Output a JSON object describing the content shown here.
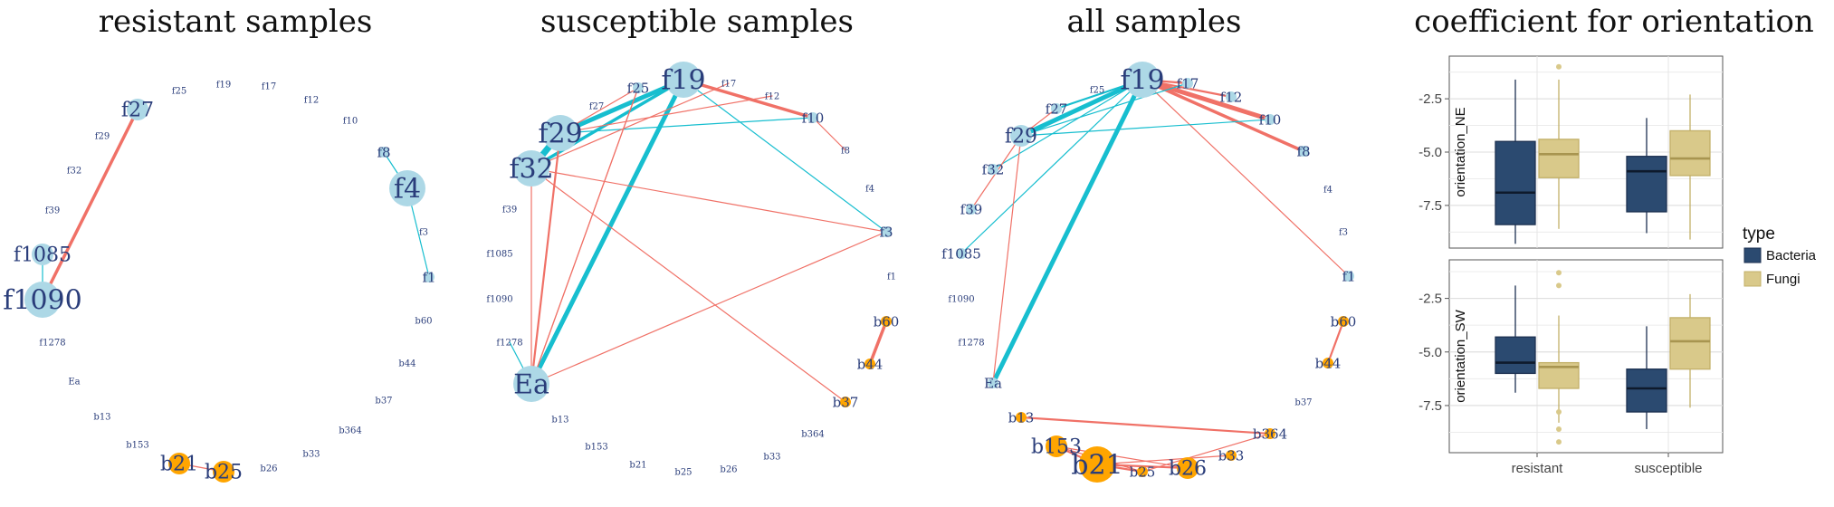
{
  "titles": {
    "resistant": "resistant samples",
    "susceptible": "susceptible samples",
    "all": "all samples",
    "boxplot": "coefficient for orientation"
  },
  "colors": {
    "fungi_node": "#add8e6",
    "bacteria_node": "#ffa500",
    "label": "#2a3d7a",
    "positive_edge": "#17becf",
    "negative_edge": "#f07167",
    "bacteria_box": "#2b4a70",
    "fungi_box": "#d9c98a"
  },
  "networks": [
    {
      "key": "resistant",
      "nodes": [
        {
          "id": "f25",
          "label": "f25",
          "kind": "fungi",
          "size": 0
        },
        {
          "id": "f19",
          "label": "f19",
          "kind": "fungi",
          "size": 0
        },
        {
          "id": "f17",
          "label": "f17",
          "kind": "fungi",
          "size": 0
        },
        {
          "id": "f12",
          "label": "f12",
          "kind": "fungi",
          "size": 0
        },
        {
          "id": "f10",
          "label": "f10",
          "kind": "fungi",
          "size": 0
        },
        {
          "id": "f27",
          "label": "f27",
          "kind": "fungi",
          "size": 2
        },
        {
          "id": "f29",
          "label": "f29",
          "kind": "fungi",
          "size": 0
        },
        {
          "id": "f32",
          "label": "f32",
          "kind": "fungi",
          "size": 0
        },
        {
          "id": "f39",
          "label": "f39",
          "kind": "fungi",
          "size": 0
        },
        {
          "id": "f1085",
          "label": "f1085",
          "kind": "fungi",
          "size": 2
        },
        {
          "id": "f1090",
          "label": "f1090",
          "kind": "fungi",
          "size": 3
        },
        {
          "id": "f1278",
          "label": "f1278",
          "kind": "fungi",
          "size": 0
        },
        {
          "id": "Ea",
          "label": "Ea",
          "kind": "fungi",
          "size": 0
        },
        {
          "id": "f8",
          "label": "f8",
          "kind": "fungi",
          "size": 1
        },
        {
          "id": "f4",
          "label": "f4",
          "kind": "fungi",
          "size": 3
        },
        {
          "id": "f3",
          "label": "f3",
          "kind": "fungi",
          "size": 0
        },
        {
          "id": "f1",
          "label": "f1",
          "kind": "fungi",
          "size": 1
        },
        {
          "id": "b60",
          "label": "b60",
          "kind": "bacteria",
          "size": 0
        },
        {
          "id": "b44",
          "label": "b44",
          "kind": "bacteria",
          "size": 0
        },
        {
          "id": "b37",
          "label": "b37",
          "kind": "bacteria",
          "size": 0
        },
        {
          "id": "b364",
          "label": "b364",
          "kind": "bacteria",
          "size": 0
        },
        {
          "id": "b33",
          "label": "b33",
          "kind": "bacteria",
          "size": 0
        },
        {
          "id": "b26",
          "label": "b26",
          "kind": "bacteria",
          "size": 0
        },
        {
          "id": "b25",
          "label": "b25",
          "kind": "bacteria",
          "size": 2
        },
        {
          "id": "b21",
          "label": "b21",
          "kind": "bacteria",
          "size": 2
        },
        {
          "id": "b153",
          "label": "b153",
          "kind": "bacteria",
          "size": 0
        },
        {
          "id": "b13",
          "label": "b13",
          "kind": "bacteria",
          "size": 0
        }
      ],
      "edges": [
        {
          "from": "f27",
          "to": "f1090",
          "sign": "negative",
          "weight": 3
        },
        {
          "from": "f1085",
          "to": "f1090",
          "sign": "positive",
          "weight": 1
        },
        {
          "from": "f8",
          "to": "f4",
          "sign": "positive",
          "weight": 1
        },
        {
          "from": "f4",
          "to": "f1",
          "sign": "positive",
          "weight": 1
        },
        {
          "from": "b21",
          "to": "b25",
          "sign": "negative",
          "weight": 1
        }
      ]
    },
    {
      "key": "susceptible",
      "nodes": [
        {
          "id": "f19",
          "label": "f19",
          "kind": "fungi",
          "size": 3
        },
        {
          "id": "f25",
          "label": "f25",
          "kind": "fungi",
          "size": 1
        },
        {
          "id": "f17",
          "label": "f17",
          "kind": "fungi",
          "size": 0
        },
        {
          "id": "f12",
          "label": "f12",
          "kind": "fungi",
          "size": 0
        },
        {
          "id": "f10",
          "label": "f10",
          "kind": "fungi",
          "size": 1
        },
        {
          "id": "f27",
          "label": "f27",
          "kind": "fungi",
          "size": 0
        },
        {
          "id": "f29",
          "label": "f29",
          "kind": "fungi",
          "size": 3
        },
        {
          "id": "f8",
          "label": "f8",
          "kind": "fungi",
          "size": 0
        },
        {
          "id": "f32",
          "label": "f32",
          "kind": "fungi",
          "size": 3
        },
        {
          "id": "f4",
          "label": "f4",
          "kind": "fungi",
          "size": 0
        },
        {
          "id": "f39",
          "label": "f39",
          "kind": "fungi",
          "size": 0
        },
        {
          "id": "f3",
          "label": "f3",
          "kind": "fungi",
          "size": 1
        },
        {
          "id": "f1085",
          "label": "f1085",
          "kind": "fungi",
          "size": 0
        },
        {
          "id": "f1",
          "label": "f1",
          "kind": "fungi",
          "size": 0
        },
        {
          "id": "f1090",
          "label": "f1090",
          "kind": "fungi",
          "size": 0
        },
        {
          "id": "b60",
          "label": "b60",
          "kind": "bacteria",
          "size": 1
        },
        {
          "id": "f1278",
          "label": "f1278",
          "kind": "fungi",
          "size": 0
        },
        {
          "id": "b44",
          "label": "b44",
          "kind": "bacteria",
          "size": 1
        },
        {
          "id": "Ea",
          "label": "Ea",
          "kind": "fungi",
          "size": 3
        },
        {
          "id": "b37",
          "label": "b37",
          "kind": "bacteria",
          "size": 1
        },
        {
          "id": "b13",
          "label": "b13",
          "kind": "bacteria",
          "size": 0
        },
        {
          "id": "b364",
          "label": "b364",
          "kind": "bacteria",
          "size": 0
        },
        {
          "id": "b153",
          "label": "b153",
          "kind": "bacteria",
          "size": 0
        },
        {
          "id": "b33",
          "label": "b33",
          "kind": "bacteria",
          "size": 0
        },
        {
          "id": "b21",
          "label": "b21",
          "kind": "bacteria",
          "size": 0
        },
        {
          "id": "b25",
          "label": "b25",
          "kind": "bacteria",
          "size": 0
        },
        {
          "id": "b26",
          "label": "b26",
          "kind": "bacteria",
          "size": 0
        }
      ],
      "edges": [
        {
          "from": "f19",
          "to": "Ea",
          "sign": "positive",
          "weight": 4
        },
        {
          "from": "f19",
          "to": "f29",
          "sign": "positive",
          "weight": 4
        },
        {
          "from": "f19",
          "to": "f32",
          "sign": "positive",
          "weight": 3
        },
        {
          "from": "f19",
          "to": "f10",
          "sign": "negative",
          "weight": 3
        },
        {
          "from": "f19",
          "to": "f3",
          "sign": "positive",
          "weight": 1
        },
        {
          "from": "f29",
          "to": "f32",
          "sign": "positive",
          "weight": 5
        },
        {
          "from": "f29",
          "to": "f10",
          "sign": "positive",
          "weight": 1
        },
        {
          "from": "f29",
          "to": "Ea",
          "sign": "negative",
          "weight": 2
        },
        {
          "from": "f32",
          "to": "f3",
          "sign": "negative",
          "weight": 1
        },
        {
          "from": "f32",
          "to": "b37",
          "sign": "negative",
          "weight": 1
        },
        {
          "from": "f32",
          "to": "Ea",
          "sign": "negative",
          "weight": 1
        },
        {
          "from": "f25",
          "to": "Ea",
          "sign": "negative",
          "weight": 1
        },
        {
          "from": "f25",
          "to": "f29",
          "sign": "negative",
          "weight": 1
        },
        {
          "from": "f17",
          "to": "f32",
          "sign": "negative",
          "weight": 1
        },
        {
          "from": "f12",
          "to": "f29",
          "sign": "negative",
          "weight": 1
        },
        {
          "from": "f10",
          "to": "f8",
          "sign": "negative",
          "weight": 1
        },
        {
          "from": "f1278",
          "to": "Ea",
          "sign": "positive",
          "weight": 1
        },
        {
          "from": "Ea",
          "to": "f3",
          "sign": "negative",
          "weight": 1
        },
        {
          "from": "f25",
          "to": "Ea",
          "sign": "negative",
          "weight": 1
        },
        {
          "from": "b60",
          "to": "b44",
          "sign": "negative",
          "weight": 3
        }
      ]
    },
    {
      "key": "all",
      "nodes": [
        {
          "id": "f19",
          "label": "f19",
          "kind": "fungi",
          "size": 3
        },
        {
          "id": "f17",
          "label": "f17",
          "kind": "fungi",
          "size": 1
        },
        {
          "id": "f25",
          "label": "f25",
          "kind": "fungi",
          "size": 0
        },
        {
          "id": "f12",
          "label": "f12",
          "kind": "fungi",
          "size": 1
        },
        {
          "id": "f27",
          "label": "f27",
          "kind": "fungi",
          "size": 1
        },
        {
          "id": "f10",
          "label": "f10",
          "kind": "fungi",
          "size": 1
        },
        {
          "id": "f29",
          "label": "f29",
          "kind": "fungi",
          "size": 2
        },
        {
          "id": "f8",
          "label": "f8",
          "kind": "fungi",
          "size": 1
        },
        {
          "id": "f32",
          "label": "f32",
          "kind": "fungi",
          "size": 1
        },
        {
          "id": "f4",
          "label": "f4",
          "kind": "fungi",
          "size": 0
        },
        {
          "id": "f39",
          "label": "f39",
          "kind": "fungi",
          "size": 1
        },
        {
          "id": "f3",
          "label": "f3",
          "kind": "fungi",
          "size": 0
        },
        {
          "id": "f1085",
          "label": "f1085",
          "kind": "fungi",
          "size": 1
        },
        {
          "id": "f1",
          "label": "f1",
          "kind": "fungi",
          "size": 1
        },
        {
          "id": "f1090",
          "label": "f1090",
          "kind": "fungi",
          "size": 0
        },
        {
          "id": "b60",
          "label": "b60",
          "kind": "bacteria",
          "size": 1
        },
        {
          "id": "f1278",
          "label": "f1278",
          "kind": "fungi",
          "size": 0
        },
        {
          "id": "b44",
          "label": "b44",
          "kind": "bacteria",
          "size": 1
        },
        {
          "id": "Ea",
          "label": "Ea",
          "kind": "fungi",
          "size": 1
        },
        {
          "id": "b37",
          "label": "b37",
          "kind": "bacteria",
          "size": 0
        },
        {
          "id": "b13",
          "label": "b13",
          "kind": "bacteria",
          "size": 1
        },
        {
          "id": "b364",
          "label": "b364",
          "kind": "bacteria",
          "size": 1
        },
        {
          "id": "b153",
          "label": "b153",
          "kind": "bacteria",
          "size": 2
        },
        {
          "id": "b33",
          "label": "b33",
          "kind": "bacteria",
          "size": 1
        },
        {
          "id": "b21",
          "label": "b21",
          "kind": "bacteria",
          "size": 3
        },
        {
          "id": "b25",
          "label": "b25",
          "kind": "bacteria",
          "size": 1
        },
        {
          "id": "b26",
          "label": "b26",
          "kind": "bacteria",
          "size": 2
        }
      ],
      "edges": [
        {
          "from": "f19",
          "to": "f29",
          "sign": "positive",
          "weight": 4
        },
        {
          "from": "f19",
          "to": "Ea",
          "sign": "positive",
          "weight": 4
        },
        {
          "from": "f19",
          "to": "f27",
          "sign": "positive",
          "weight": 2
        },
        {
          "from": "f19",
          "to": "f10",
          "sign": "negative",
          "weight": 4
        },
        {
          "from": "f19",
          "to": "f8",
          "sign": "negative",
          "weight": 3
        },
        {
          "from": "f19",
          "to": "f12",
          "sign": "negative",
          "weight": 2
        },
        {
          "from": "f19",
          "to": "f17",
          "sign": "negative",
          "weight": 2
        },
        {
          "from": "f19",
          "to": "f1085",
          "sign": "positive",
          "weight": 1
        },
        {
          "from": "f19",
          "to": "f1",
          "sign": "negative",
          "weight": 1
        },
        {
          "from": "f19",
          "to": "f32",
          "sign": "positive",
          "weight": 1
        },
        {
          "from": "f29",
          "to": "f10",
          "sign": "positive",
          "weight": 1
        },
        {
          "from": "f29",
          "to": "Ea",
          "sign": "negative",
          "weight": 1
        },
        {
          "from": "f29",
          "to": "f39",
          "sign": "negative",
          "weight": 1
        },
        {
          "from": "f27",
          "to": "f29",
          "sign": "negative",
          "weight": 1
        },
        {
          "from": "f17",
          "to": "f29",
          "sign": "positive",
          "weight": 1
        },
        {
          "from": "b60",
          "to": "b44",
          "sign": "negative",
          "weight": 2
        },
        {
          "from": "b13",
          "to": "b364",
          "sign": "negative",
          "weight": 2
        },
        {
          "from": "b153",
          "to": "b21",
          "sign": "negative",
          "weight": 2
        },
        {
          "from": "b153",
          "to": "b25",
          "sign": "negative",
          "weight": 1
        },
        {
          "from": "b153",
          "to": "b26",
          "sign": "negative",
          "weight": 1
        },
        {
          "from": "b21",
          "to": "b25",
          "sign": "negative",
          "weight": 2
        },
        {
          "from": "b21",
          "to": "b26",
          "sign": "negative",
          "weight": 2
        },
        {
          "from": "b21",
          "to": "b33",
          "sign": "negative",
          "weight": 1
        },
        {
          "from": "b25",
          "to": "b364",
          "sign": "negative",
          "weight": 1
        }
      ]
    }
  ],
  "chart_data": {
    "type": "box",
    "title": "coefficient for orientation",
    "categories": [
      "resistant",
      "susceptible"
    ],
    "legend": {
      "title": "type",
      "entries": [
        "Bacteria",
        "Fungi"
      ],
      "placement": "right"
    },
    "panels": [
      {
        "ylabel": "orientation_NE",
        "ylim": [
          -9.5,
          -0.5
        ],
        "yticks": [
          -2.5,
          -5.0,
          -7.5
        ],
        "yticklabels": [
          "-2.5",
          "-5.0",
          "-7.5"
        ],
        "series": [
          {
            "name": "Bacteria",
            "boxes": [
              {
                "min": -9.3,
                "q1": -8.4,
                "median": -6.9,
                "q3": -4.5,
                "max": -1.6,
                "outliers": []
              },
              {
                "min": -8.8,
                "q1": -7.8,
                "median": -5.9,
                "q3": -5.2,
                "max": -3.4,
                "outliers": []
              }
            ]
          },
          {
            "name": "Fungi",
            "boxes": [
              {
                "min": -8.6,
                "q1": -6.2,
                "median": -5.1,
                "q3": -4.4,
                "max": -1.6,
                "outliers": [
                  -1.0
                ]
              },
              {
                "min": -9.1,
                "q1": -6.1,
                "median": -5.3,
                "q3": -4.0,
                "max": -2.3,
                "outliers": []
              }
            ]
          }
        ]
      },
      {
        "ylabel": "orientation_SW",
        "ylim": [
          -9.7,
          -0.7
        ],
        "yticks": [
          -2.5,
          -5.0,
          -7.5
        ],
        "yticklabels": [
          "-2.5",
          "-5.0",
          "-7.5"
        ],
        "series": [
          {
            "name": "Bacteria",
            "boxes": [
              {
                "min": -6.9,
                "q1": -6.0,
                "median": -5.5,
                "q3": -4.3,
                "max": -1.9,
                "outliers": []
              },
              {
                "min": -8.6,
                "q1": -7.8,
                "median": -6.7,
                "q3": -5.8,
                "max": -3.8,
                "outliers": []
              }
            ]
          },
          {
            "name": "Fungi",
            "boxes": [
              {
                "min": -8.3,
                "q1": -6.7,
                "median": -5.7,
                "q3": -5.5,
                "max": -3.3,
                "outliers": [
                  -1.3,
                  -1.9,
                  -7.8,
                  -8.6,
                  -9.2
                ]
              },
              {
                "min": -7.6,
                "q1": -5.8,
                "median": -4.5,
                "q3": -3.4,
                "max": -2.3,
                "outliers": []
              }
            ]
          }
        ]
      }
    ]
  }
}
